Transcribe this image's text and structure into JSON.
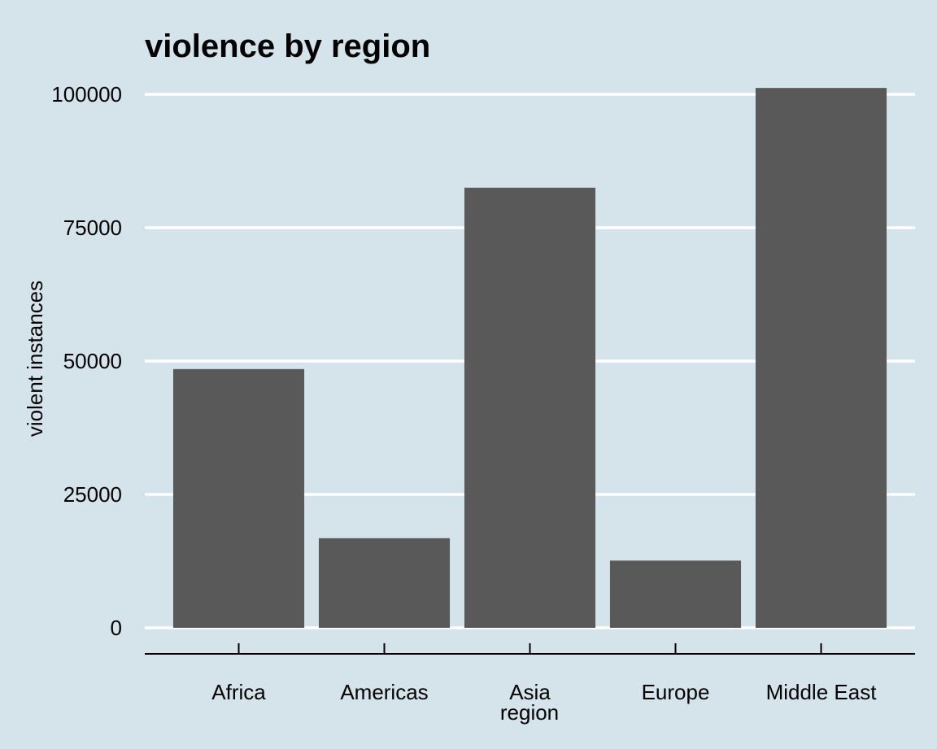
{
  "colors": {
    "background": "#d5e4eb",
    "bar": "#595959",
    "gridline": "#ffffff",
    "axis_line": "#000000",
    "text": "#000000"
  },
  "chart_data": {
    "type": "bar",
    "title": "violence by region",
    "xlabel": "region",
    "ylabel": "violent instances",
    "categories": [
      "Africa",
      "Americas",
      "Asia",
      "Europe",
      "Middle East"
    ],
    "values": [
      48500,
      16800,
      82500,
      12600,
      101200
    ],
    "ylim": [
      0,
      102000
    ],
    "yticks": [
      0,
      25000,
      50000,
      75000,
      100000
    ],
    "ytick_labels": [
      "0",
      "25000",
      "50000",
      "75000",
      "100000"
    ],
    "grid": "horizontal-major",
    "legend": "none"
  }
}
